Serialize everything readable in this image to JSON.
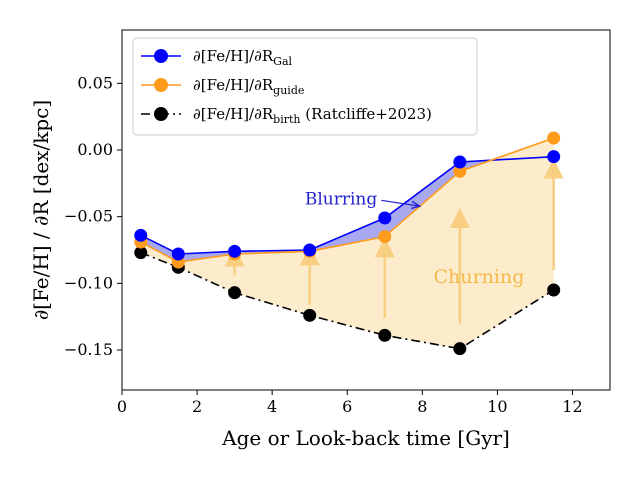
{
  "chart_data": {
    "type": "line",
    "title": "",
    "xlabel": "Age or Look-back time [Gyr]",
    "ylabel": "∂[Fe/H] / ∂R [dex/kpc]",
    "xlim": [
      0,
      13
    ],
    "ylim": [
      -0.18,
      0.09
    ],
    "xticks": [
      0,
      2,
      4,
      6,
      8,
      10,
      12
    ],
    "yticks": [
      0.05,
      0.0,
      -0.05,
      -0.1,
      -0.15
    ],
    "xtick_labels": [
      "0",
      "2",
      "4",
      "6",
      "8",
      "10",
      "12"
    ],
    "ytick_labels": [
      "0.05",
      "0.00",
      "−0.05",
      "−0.10",
      "−0.15"
    ],
    "legend_placement": "top-left",
    "grid": false,
    "x": [
      0.5,
      1.5,
      3.0,
      5.0,
      7.0,
      9.0,
      11.5
    ],
    "series": [
      {
        "name": "∂[Fe/H]/∂R_Gal",
        "legend_main": "∂[Fe/H]/∂R",
        "legend_sub": "Gal",
        "legend_suffix": "",
        "color": "#0000ff",
        "linestyle": "solid",
        "values": [
          -0.064,
          -0.078,
          -0.076,
          -0.075,
          -0.051,
          -0.009,
          -0.005
        ]
      },
      {
        "name": "∂[Fe/H]/∂R_guide",
        "legend_main": "∂[Fe/H]/∂R",
        "legend_sub": "guide",
        "legend_suffix": "",
        "color": "#ff9b1a",
        "linestyle": "solid",
        "values": [
          -0.069,
          -0.084,
          -0.078,
          -0.076,
          -0.065,
          -0.016,
          0.009
        ]
      },
      {
        "name": "∂[Fe/H]/∂R_birth (Ratcliffe+2023)",
        "legend_main": "∂[Fe/H]/∂R",
        "legend_sub": "birth",
        "legend_suffix": " (Ratcliffe+2023)",
        "color": "#000000",
        "linestyle": "dashdot",
        "values": [
          -0.077,
          -0.088,
          -0.107,
          -0.124,
          -0.139,
          -0.149,
          -0.105
        ]
      }
    ],
    "fills": [
      {
        "between": [
          "∂[Fe/H]/∂R_Gal",
          "∂[Fe/H]/∂R_guide"
        ],
        "color": "#a8a8f0"
      },
      {
        "between": [
          "∂[Fe/H]/∂R_guide",
          "∂[Fe/H]/∂R_birth (Ratcliffe+2023)"
        ],
        "color": "#fdeccc"
      }
    ],
    "annotations": [
      {
        "text": "Blurring",
        "color": "#2222cc",
        "x": 6.8,
        "y": -0.037,
        "arrow_to": [
          7.9,
          -0.042
        ]
      },
      {
        "text": "Churning",
        "color": "#f5b94a",
        "x": 8.3,
        "y": -0.096
      }
    ],
    "arrows": [
      {
        "x": 3.0,
        "from": -0.094,
        "to": -0.08,
        "color": "#f8cf80"
      },
      {
        "x": 5.0,
        "from": -0.116,
        "to": -0.079,
        "color": "#f8cf80"
      },
      {
        "x": 7.0,
        "from": -0.126,
        "to": -0.073,
        "color": "#f8cf80"
      },
      {
        "x": 9.0,
        "from": -0.13,
        "to": -0.051,
        "color": "#f8cf80"
      },
      {
        "x": 11.5,
        "from": -0.09,
        "to": -0.014,
        "color": "#f8cf80"
      }
    ]
  }
}
